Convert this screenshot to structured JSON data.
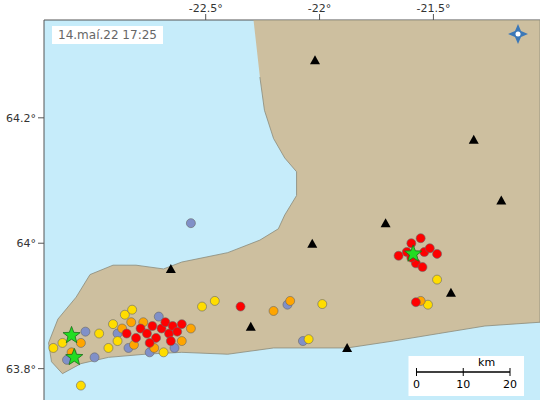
{
  "chart_data": {
    "type": "scatter",
    "title": "14.maí.22 17:25",
    "xlim": [
      -23.21,
      -21.032
    ],
    "ylim": [
      63.75,
      64.356
    ],
    "xticks": [
      {
        "value": -22.5,
        "label": "-22.5°"
      },
      {
        "value": -22,
        "label": "-22°"
      },
      {
        "value": -21.5,
        "label": "-21.5°"
      }
    ],
    "yticks": [
      {
        "value": 63.8,
        "label": "63.8°"
      },
      {
        "value": 64,
        "label": "64°"
      },
      {
        "value": 64.2,
        "label": "64.2°"
      }
    ],
    "land": {
      "color": "#cdbf9f",
      "x": [
        -22.29,
        -21.032,
        -21.032,
        -21.274,
        -21.476,
        -21.677,
        -21.879,
        -22.202,
        -22.403,
        -22.605,
        -22.766,
        -22.927,
        -23.048,
        -23.129,
        -23.177,
        -23.19,
        -23.149,
        -23.069,
        -23.008,
        -22.907,
        -22.806,
        -22.685,
        -22.605,
        -22.403,
        -22.262,
        -22.181,
        -22.153,
        -22.101,
        -22.101,
        -22.153,
        -22.202,
        -22.242,
        -22.262
      ],
      "y": [
        64.356,
        64.356,
        63.874,
        63.868,
        63.856,
        63.844,
        63.833,
        63.833,
        63.823,
        63.826,
        63.823,
        63.818,
        63.808,
        63.792,
        63.811,
        63.841,
        63.879,
        63.914,
        63.95,
        63.965,
        63.965,
        63.959,
        63.97,
        63.985,
        64.005,
        64.023,
        64.045,
        64.076,
        64.114,
        64.136,
        64.167,
        64.212,
        64.265
      ]
    },
    "series": [
      {
        "color": "#8090c8",
        "marker": "circle",
        "x": [
          -22.565,
          -22.141,
          -22.887,
          -22.839,
          -22.746,
          -22.637,
          -22.706,
          -22.988,
          -23.109,
          -23.028,
          -22.073
        ],
        "y": [
          64.032,
          63.902,
          63.856,
          63.833,
          63.826,
          63.833,
          63.883,
          63.818,
          63.814,
          63.859,
          63.844
        ]
      },
      {
        "color": "#ffdd00",
        "marker": "circle",
        "x": [
          -22.855,
          -22.823,
          -22.907,
          -22.887,
          -22.685,
          -22.516,
          -22.46,
          -21.988,
          -22.048,
          -23.129,
          -23.048,
          -23.169,
          -21.484,
          -21.524,
          -22.968,
          -22.927
        ],
        "y": [
          63.886,
          63.894,
          63.871,
          63.844,
          63.826,
          63.899,
          63.908,
          63.903,
          63.847,
          63.841,
          63.773,
          63.833,
          63.942,
          63.902,
          63.856,
          63.833
        ]
      },
      {
        "color": "#ffa500",
        "marker": "circle",
        "x": [
          -22.827,
          -22.774,
          -22.867,
          -22.815,
          -22.726,
          -22.605,
          -22.565,
          -23.089,
          -23.048,
          -22.202,
          -22.129,
          -21.556
        ],
        "y": [
          63.874,
          63.874,
          63.864,
          63.838,
          63.833,
          63.844,
          63.864,
          63.826,
          63.841,
          63.892,
          63.908,
          63.908
        ]
      },
      {
        "color": "#ff0000",
        "marker": "circle",
        "x": [
          -22.786,
          -22.758,
          -22.734,
          -22.718,
          -22.694,
          -22.677,
          -22.661,
          -22.645,
          -22.625,
          -22.605,
          -22.806,
          -22.746,
          -22.653,
          -22.847,
          -22.347,
          -21.653,
          -21.617,
          -21.597,
          -21.556,
          -21.54,
          -21.516,
          -21.484,
          -21.577,
          -21.548,
          -21.597,
          -21.577
        ],
        "y": [
          63.864,
          63.856,
          63.868,
          63.849,
          63.864,
          63.874,
          63.856,
          63.868,
          63.859,
          63.871,
          63.849,
          63.841,
          63.844,
          63.856,
          63.899,
          63.98,
          63.986,
          64.0,
          64.008,
          63.986,
          63.992,
          63.983,
          63.968,
          63.962,
          63.977,
          63.906
        ]
      },
      {
        "color": "#22dd22",
        "marker": "star",
        "x": [
          -23.089,
          -23.077,
          -21.589
        ],
        "y": [
          63.853,
          63.818,
          63.983
        ]
      },
      {
        "color": "#000000",
        "marker": "triangle",
        "x": [
          -22.02,
          -21.323,
          -21.202,
          -21.71,
          -22.032,
          -22.653,
          -22.302,
          -21.879,
          -21.423
        ],
        "y": [
          64.292,
          64.165,
          64.068,
          64.032,
          63.999,
          63.959,
          63.867,
          63.833,
          63.921
        ]
      }
    ],
    "scale_bar": {
      "label": "km",
      "ticks": [
        0,
        10,
        20
      ]
    }
  }
}
